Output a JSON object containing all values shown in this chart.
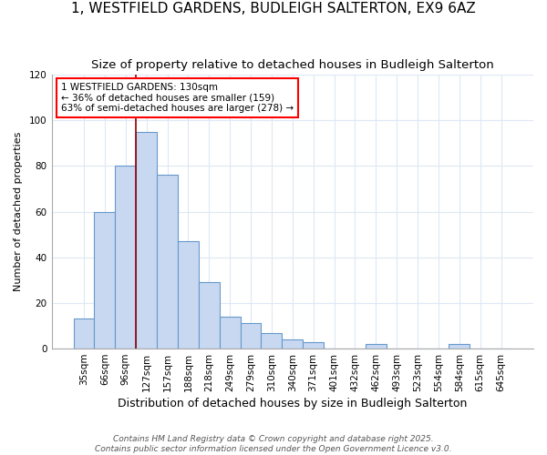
{
  "title": "1, WESTFIELD GARDENS, BUDLEIGH SALTERTON, EX9 6AZ",
  "subtitle": "Size of property relative to detached houses in Budleigh Salterton",
  "xlabel": "Distribution of detached houses by size in Budleigh Salterton",
  "ylabel": "Number of detached properties",
  "bar_values": [
    13,
    60,
    80,
    95,
    76,
    47,
    29,
    14,
    11,
    7,
    4,
    3,
    0,
    0,
    2,
    0,
    0,
    0,
    2,
    0,
    0
  ],
  "bar_labels": [
    "35sqm",
    "66sqm",
    "96sqm",
    "127sqm",
    "157sqm",
    "188sqm",
    "218sqm",
    "249sqm",
    "279sqm",
    "310sqm",
    "340sqm",
    "371sqm",
    "401sqm",
    "432sqm",
    "462sqm",
    "493sqm",
    "523sqm",
    "554sqm",
    "584sqm",
    "615sqm",
    "645sqm"
  ],
  "bar_color": "#c8d8f0",
  "bar_edge_color": "#6699cc",
  "vline_x_index": 3,
  "vline_color": "#8b0000",
  "annotation_text": "1 WESTFIELD GARDENS: 130sqm\n← 36% of detached houses are smaller (159)\n63% of semi-detached houses are larger (278) →",
  "annotation_box_color": "white",
  "annotation_box_edge_color": "red",
  "ylim": [
    0,
    120
  ],
  "background_color": "#ffffff",
  "grid_color": "#dde8f5",
  "footer_text": "Contains HM Land Registry data © Crown copyright and database right 2025.\nContains public sector information licensed under the Open Government Licence v3.0.",
  "title_fontsize": 11,
  "subtitle_fontsize": 9.5,
  "xlabel_fontsize": 9,
  "ylabel_fontsize": 8,
  "tick_fontsize": 7.5,
  "annotation_fontsize": 7.5
}
